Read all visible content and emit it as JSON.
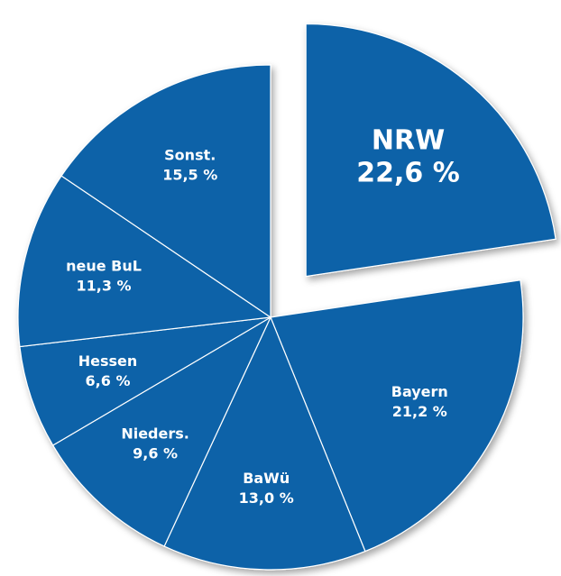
{
  "chart_data": {
    "type": "pie",
    "categories": [
      "NRW",
      "Bayern",
      "BaWü",
      "Nieders.",
      "Hessen",
      "neue BuL",
      "Sonst."
    ],
    "values": [
      22.6,
      21.2,
      13.0,
      9.6,
      6.6,
      11.3,
      15.5
    ],
    "value_labels": [
      "22,6 %",
      "21,2 %",
      "13,0 %",
      "9,6 %",
      "6,6 %",
      "11,3 %",
      "15,5 %"
    ],
    "color": "#0b62a8",
    "exploded": [
      "NRW"
    ]
  }
}
